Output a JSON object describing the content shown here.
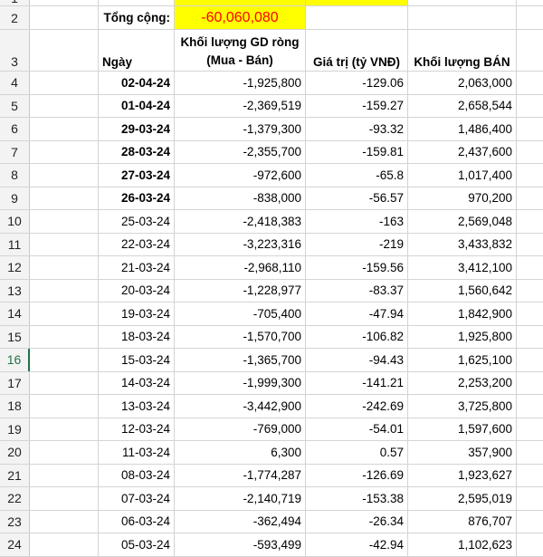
{
  "title_row": {
    "row_number": "1",
    "text": ""
  },
  "total_row": {
    "row_number": "2",
    "label": "Tổng cộng:",
    "value": "-60,060,080"
  },
  "header_row": {
    "row_number": "3",
    "date": "Ngày",
    "volume_line1": "Khối lượng GD ròng",
    "volume_line2": "(Mua - Bán)",
    "value": "Giá trị (tỷ VNĐ)",
    "sell": "Khối lượng BÁN"
  },
  "rows": [
    {
      "n": "4",
      "date": "02-04-24",
      "vol": "-1,925,800",
      "val": "-129.06",
      "sell": "2,063,000"
    },
    {
      "n": "5",
      "date": "01-04-24",
      "vol": "-2,369,519",
      "val": "-159.27",
      "sell": "2,658,544"
    },
    {
      "n": "6",
      "date": "29-03-24",
      "vol": "-1,379,300",
      "val": "-93.32",
      "sell": "1,486,400"
    },
    {
      "n": "7",
      "date": "28-03-24",
      "vol": "-2,355,700",
      "val": "-159.81",
      "sell": "2,437,600"
    },
    {
      "n": "8",
      "date": "27-03-24",
      "vol": "-972,600",
      "val": "-65.8",
      "sell": "1,017,400"
    },
    {
      "n": "9",
      "date": "26-03-24",
      "vol": "-838,000",
      "val": "-56.57",
      "sell": "970,200"
    },
    {
      "n": "10",
      "date": "25-03-24",
      "vol": "-2,418,383",
      "val": "-163",
      "sell": "2,569,048"
    },
    {
      "n": "11",
      "date": "22-03-24",
      "vol": "-3,223,316",
      "val": "-219",
      "sell": "3,433,832"
    },
    {
      "n": "12",
      "date": "21-03-24",
      "vol": "-2,968,110",
      "val": "-159.56",
      "sell": "3,412,100"
    },
    {
      "n": "13",
      "date": "20-03-24",
      "vol": "-1,228,977",
      "val": "-83.37",
      "sell": "1,560,642"
    },
    {
      "n": "14",
      "date": "19-03-24",
      "vol": "-705,400",
      "val": "-47.94",
      "sell": "1,842,900"
    },
    {
      "n": "15",
      "date": "18-03-24",
      "vol": "-1,570,700",
      "val": "-106.82",
      "sell": "1,925,800"
    },
    {
      "n": "16",
      "date": "15-03-24",
      "vol": "-1,365,700",
      "val": "-94.43",
      "sell": "1,625,100"
    },
    {
      "n": "17",
      "date": "14-03-24",
      "vol": "-1,999,300",
      "val": "-141.21",
      "sell": "2,253,200"
    },
    {
      "n": "18",
      "date": "13-03-24",
      "vol": "-3,442,900",
      "val": "-242.69",
      "sell": "3,725,800"
    },
    {
      "n": "19",
      "date": "12-03-24",
      "vol": "-769,000",
      "val": "-54.01",
      "sell": "1,597,600"
    },
    {
      "n": "20",
      "date": "11-03-24",
      "vol": "6,300",
      "val": "0.57",
      "sell": "357,900"
    },
    {
      "n": "21",
      "date": "08-03-24",
      "vol": "-1,774,287",
      "val": "-126.69",
      "sell": "1,923,627"
    },
    {
      "n": "22",
      "date": "07-03-24",
      "vol": "-2,140,719",
      "val": "-153.38",
      "sell": "2,595,019"
    },
    {
      "n": "23",
      "date": "06-03-24",
      "vol": "-362,494",
      "val": "-26.34",
      "sell": "876,707"
    },
    {
      "n": "24",
      "date": "05-03-24",
      "vol": "-593,499",
      "val": "-42.94",
      "sell": "1,102,623"
    }
  ],
  "colors": {
    "total_highlight": "#ffff00",
    "total_value": "#ff0000",
    "active_row_header": "#217346"
  }
}
